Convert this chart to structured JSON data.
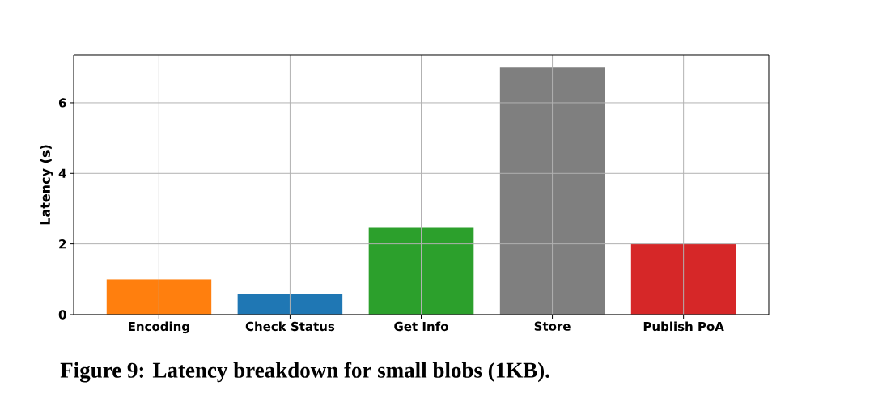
{
  "chart_data": {
    "type": "bar",
    "title": "Figure 9: Latency breakdown for small blobs (1KB).",
    "ylabel": "Latency (s)",
    "categories": [
      "Encoding",
      "Check Status",
      "Get Info",
      "Store",
      "Publish PoA"
    ],
    "values": [
      1.0,
      0.57,
      2.46,
      7.0,
      2.0
    ],
    "colors": [
      "#ff7f0e",
      "#1f77b4",
      "#2ca02c",
      "#7f7f7f",
      "#d62728"
    ],
    "ylim": [
      0,
      7.35
    ],
    "yticks": [
      0,
      2,
      4,
      6
    ],
    "grid": true
  }
}
